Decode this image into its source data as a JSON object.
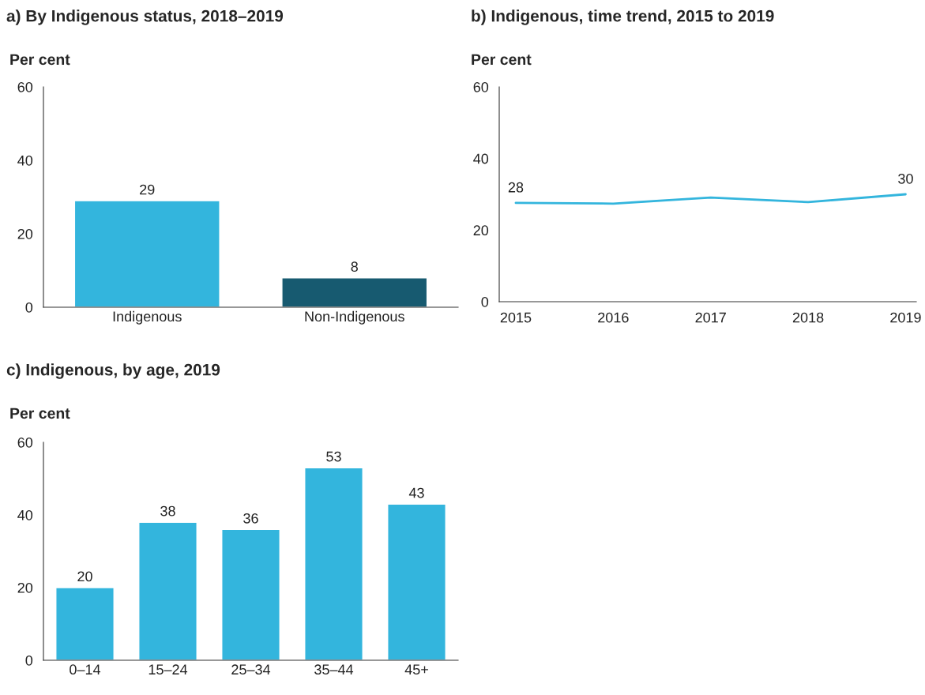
{
  "chart_data": [
    {
      "type": "bar",
      "title": "a) By Indigenous status, 2018–2019",
      "ylabel": "Per cent",
      "categories": [
        "Indigenous",
        "Non-Indigenous"
      ],
      "values": [
        29,
        8
      ],
      "colors": [
        "#33b5dd",
        "#175a70"
      ],
      "ylim": [
        0,
        60
      ],
      "yticks": [
        0,
        20,
        40,
        60
      ],
      "data_labels": true,
      "grid": false,
      "legend": false
    },
    {
      "type": "line",
      "title": "b) Indigenous, time trend, 2015 to 2019",
      "ylabel": "Per cent",
      "x": [
        2015,
        2016,
        2017,
        2018,
        2019
      ],
      "series": [
        {
          "color": "#33b5dd",
          "values": [
            27.6,
            27.4,
            29.1,
            27.8,
            30.0
          ],
          "value_labels": [
            "28",
            null,
            null,
            null,
            "30"
          ]
        }
      ],
      "xlim": [
        2014.83,
        2019.11
      ],
      "xticks": [
        2015,
        2016,
        2017,
        2018,
        2019
      ],
      "ylim": [
        0,
        60
      ],
      "yticks": [
        0,
        20,
        40,
        60
      ],
      "grid": false,
      "legend": false,
      "marker": "none",
      "line_style": "solid"
    },
    {
      "type": "bar",
      "title": "c) Indigenous, by age, 2019",
      "ylabel": "Per cent",
      "categories": [
        "0–14",
        "15–24",
        "25–34",
        "35–44",
        "45+"
      ],
      "values": [
        20,
        38,
        36,
        53,
        43
      ],
      "colors": [
        "#33b5dd",
        "#33b5dd",
        "#33b5dd",
        "#33b5dd",
        "#33b5dd"
      ],
      "ylim": [
        0,
        60
      ],
      "yticks": [
        0,
        20,
        40,
        60
      ],
      "data_labels": true,
      "grid": false,
      "legend": false
    }
  ]
}
